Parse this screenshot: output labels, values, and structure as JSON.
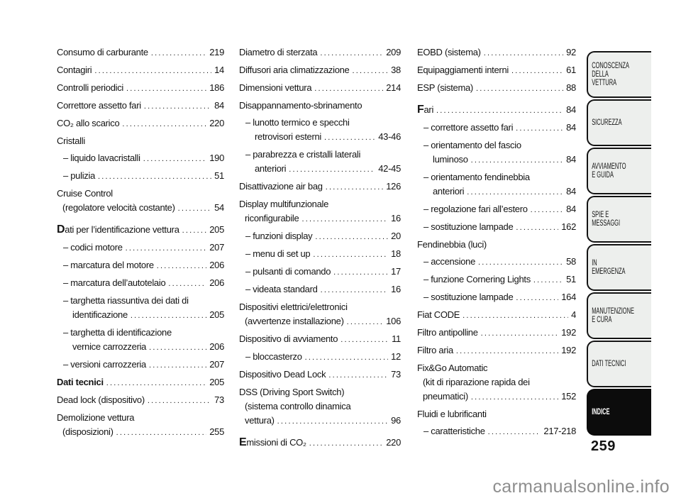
{
  "colors": {
    "ink": "#131313",
    "tabFill": "#edefed",
    "tabActive": "#0c0c0c",
    "watermark": "#8e8e8e"
  },
  "page": {
    "number": "259",
    "watermark": "carmanualsonline.info"
  },
  "index_columns": [
    {
      "entries": [
        {
          "lines": [
            "Consumo di carburante"
          ],
          "page": "219"
        },
        {
          "lines": [
            "Contagiri"
          ],
          "page": "14"
        },
        {
          "lines": [
            "Controlli periodici"
          ],
          "page": "186"
        },
        {
          "lines": [
            "Correttore assetto fari"
          ],
          "page": "84"
        },
        {
          "lines": [
            "CO₂ allo scarico"
          ],
          "page": "220"
        },
        {
          "lines": [
            "Cristalli"
          ]
        },
        {
          "lines": [
            "– liquido lavacristalli"
          ],
          "page": "190",
          "sub": true
        },
        {
          "lines": [
            "– pulizia"
          ],
          "page": "51",
          "sub": true
        },
        {
          "lines": [
            "Cruise Control",
            "(regolatore velocità costante)"
          ],
          "page": "54"
        },
        {
          "lines": [
            "Dati per l’identificazione vettura"
          ],
          "page": "205",
          "lead": true,
          "gap": true
        },
        {
          "lines": [
            "– codici motore"
          ],
          "page": "207",
          "sub": true
        },
        {
          "lines": [
            "– marcatura del motore"
          ],
          "page": "206",
          "sub": true
        },
        {
          "lines": [
            "– marcatura dell’autotelaio"
          ],
          "page": "206",
          "sub": true
        },
        {
          "lines": [
            "– targhetta riassuntiva dei dati di",
            "identificazione"
          ],
          "page": "205",
          "sub": true
        },
        {
          "lines": [
            "– targhetta di identificazione",
            "vernice carrozzeria"
          ],
          "page": "206",
          "sub": true
        },
        {
          "lines": [
            "– versioni carrozzeria"
          ],
          "page": "207",
          "sub": true
        },
        {
          "lines": [
            "Dati tecnici"
          ],
          "page": "205",
          "bold": true
        },
        {
          "lines": [
            "Dead lock (dispositivo)"
          ],
          "page": "73"
        },
        {
          "lines": [
            "Demolizione vettura",
            "(disposizioni)"
          ],
          "page": "255"
        }
      ]
    },
    {
      "entries": [
        {
          "lines": [
            "Diametro di sterzata"
          ],
          "page": "209"
        },
        {
          "lines": [
            "Diffusori aria climatizzazione"
          ],
          "page": "38"
        },
        {
          "lines": [
            "Dimensioni vettura"
          ],
          "page": "214"
        },
        {
          "lines": [
            "Disappannamento-sbrinamento"
          ]
        },
        {
          "lines": [
            "– lunotto termico e specchi",
            "retrovisori esterni"
          ],
          "page": "43-46",
          "sub": true
        },
        {
          "lines": [
            "– parabrezza e cristalli laterali",
            "anteriori"
          ],
          "page": "42-45",
          "sub": true
        },
        {
          "lines": [
            "Disattivazione air bag"
          ],
          "page": "126"
        },
        {
          "lines": [
            "Display multifunzionale",
            "riconfigurabile"
          ],
          "page": "16"
        },
        {
          "lines": [
            "– funzioni display"
          ],
          "page": "20",
          "sub": true
        },
        {
          "lines": [
            "– menu di set up"
          ],
          "page": "18",
          "sub": true
        },
        {
          "lines": [
            "– pulsanti di comando"
          ],
          "page": "17",
          "sub": true
        },
        {
          "lines": [
            "– videata standard"
          ],
          "page": "16",
          "sub": true
        },
        {
          "lines": [
            "Dispositivi elettrici/elettronici",
            "(avvertenze installazione)"
          ],
          "page": "106"
        },
        {
          "lines": [
            "Dispositivo di avviamento"
          ],
          "page": "11"
        },
        {
          "lines": [
            "– bloccasterzo"
          ],
          "page": "12",
          "sub": true
        },
        {
          "lines": [
            "Dispositivo Dead Lock"
          ],
          "page": "73"
        },
        {
          "lines": [
            "DSS (Driving Sport Switch)",
            "(sistema controllo dinamica",
            "vettura)"
          ],
          "page": "96"
        },
        {
          "lines": [
            "Emissioni di CO₂"
          ],
          "page": "220",
          "lead": true,
          "gap": true
        }
      ]
    },
    {
      "entries": [
        {
          "lines": [
            "EOBD (sistema)"
          ],
          "page": "92"
        },
        {
          "lines": [
            "Equipaggiamenti interni"
          ],
          "page": "61"
        },
        {
          "lines": [
            "ESP (sistema)"
          ],
          "page": "88"
        },
        {
          "lines": [
            "Fari"
          ],
          "page": "84",
          "lead": true,
          "gap": true
        },
        {
          "lines": [
            "– correttore assetto fari"
          ],
          "page": "84",
          "sub": true
        },
        {
          "lines": [
            "– orientamento del fascio",
            "luminoso"
          ],
          "page": "84",
          "sub": true
        },
        {
          "lines": [
            "– orientamento fendinebbia",
            "anteriori"
          ],
          "page": "84",
          "sub": true
        },
        {
          "lines": [
            "– regolazione fari all’estero"
          ],
          "page": "84",
          "sub": true
        },
        {
          "lines": [
            "– sostituzione lampade"
          ],
          "page": "162",
          "sub": true
        },
        {
          "lines": [
            "Fendinebbia (luci)"
          ]
        },
        {
          "lines": [
            "– accensione"
          ],
          "page": "58",
          "sub": true
        },
        {
          "lines": [
            "– funzione Cornering Lights"
          ],
          "page": "51",
          "sub": true
        },
        {
          "lines": [
            "– sostituzione lampade"
          ],
          "page": "164",
          "sub": true
        },
        {
          "lines": [
            "Fiat CODE"
          ],
          "page": "4"
        },
        {
          "lines": [
            "Filtro antipolline"
          ],
          "page": "192"
        },
        {
          "lines": [
            "Filtro aria"
          ],
          "page": "192"
        },
        {
          "lines": [
            "Fix&Go Automatic",
            "(kit di riparazione rapida dei",
            "pneumatici)"
          ],
          "page": "152"
        },
        {
          "lines": [
            "Fluidi e lubrificanti"
          ]
        },
        {
          "lines": [
            "– caratteristiche"
          ],
          "page": "217-218",
          "sub": true
        }
      ]
    }
  ],
  "sidebar": {
    "tabs": [
      {
        "label": "CONOSCENZA\nDELLA\nVETTURA",
        "active": false
      },
      {
        "label": "SICUREZZA",
        "active": false
      },
      {
        "label": "AVVIAMENTO\nE GUIDA",
        "active": false
      },
      {
        "label": "SPIE E\nMESSAGGI",
        "active": false
      },
      {
        "label": "IN EMERGENZA",
        "active": false
      },
      {
        "label": "MANUTENZIONE\nE CURA",
        "active": false
      },
      {
        "label": "DATI TECNICI",
        "active": false
      },
      {
        "label": "INDICE",
        "active": true
      }
    ]
  }
}
